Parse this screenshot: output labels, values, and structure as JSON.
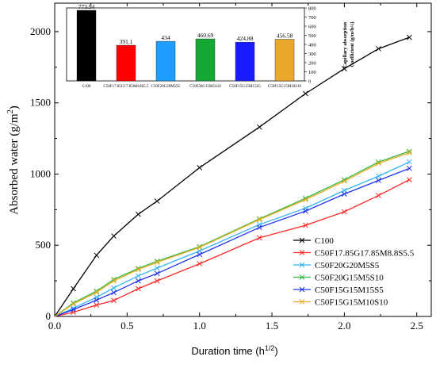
{
  "chart_data": [
    {
      "type": "line",
      "xlabel": "Duration time (h1/2)",
      "xlabel_parts": {
        "main": "Duration time (h",
        "sup": "1/2",
        "end": ")"
      },
      "ylabel": "Absorbed water (g/m2)",
      "ylabel_parts": {
        "main": "Absorbed water (g/m",
        "sup": "2",
        "end": ")"
      },
      "xlim": [
        0.0,
        2.6
      ],
      "ylim": [
        0,
        2200
      ],
      "xticks": [
        0.0,
        0.5,
        1.0,
        1.5,
        2.0,
        2.5
      ],
      "xtick_labels": [
        "0.0",
        "0.5",
        "1.0",
        "1.5",
        "2.0",
        "2.5"
      ],
      "yticks": [
        0,
        500,
        1000,
        1500,
        2000
      ],
      "ytick_labels": [
        "0",
        "500",
        "1000",
        "1500",
        "2000"
      ],
      "grid": false,
      "legend_position": "bottom-right",
      "x": [
        0,
        0.129,
        0.289,
        0.408,
        0.577,
        0.707,
        1.0,
        1.414,
        1.732,
        2.0,
        2.236,
        2.449
      ],
      "series": [
        {
          "name": "C100",
          "color": "#000000",
          "marker": "x",
          "values": [
            0,
            195,
            430,
            565,
            718,
            810,
            1045,
            1330,
            1565,
            1740,
            1880,
            1960
          ]
        },
        {
          "name": "C50F17.85G17.85M8.8S5.5",
          "color": "#ff2a2a",
          "marker": "x",
          "values": [
            0,
            30,
            80,
            112,
            195,
            250,
            370,
            552,
            640,
            735,
            850,
            960
          ]
        },
        {
          "name": "C50F20G20M5S5",
          "color": "#33b5f0",
          "marker": "x",
          "values": [
            0,
            58,
            135,
            200,
            285,
            340,
            460,
            645,
            760,
            885,
            985,
            1085
          ]
        },
        {
          "name": "C50F20G15M5S10",
          "color": "#33bb44",
          "marker": "x",
          "values": [
            0,
            95,
            178,
            260,
            337,
            388,
            490,
            685,
            830,
            960,
            1085,
            1160
          ]
        },
        {
          "name": "C50F15G15M15S5",
          "color": "#2233ee",
          "marker": "x",
          "values": [
            0,
            48,
            115,
            168,
            250,
            302,
            435,
            625,
            740,
            860,
            955,
            1040
          ]
        },
        {
          "name": "C50F15G15M10S10",
          "color": "#eaaa22",
          "marker": "x",
          "values": [
            0,
            88,
            170,
            250,
            330,
            380,
            485,
            680,
            820,
            950,
            1075,
            1150
          ]
        }
      ]
    },
    {
      "type": "bar",
      "categories": [
        "C100",
        "C50F17.85G17.85M8.8S5.5",
        "C50F20G20M5S5",
        "C50F20G15M5S10",
        "C50F15G15M15S5",
        "C50F15G15M10S10"
      ],
      "values": [
        773.94,
        391.1,
        434,
        460.69,
        424.88,
        456.58
      ],
      "value_labels": [
        "773.94",
        "391.1",
        "434",
        "460.69",
        "424.88",
        "456.58"
      ],
      "colors": [
        "#000000",
        "#ff0000",
        "#1e9fff",
        "#14a834",
        "#1a1aff",
        "#e8a82c"
      ],
      "ylabel_line1": "Capillary absorption",
      "ylabel_line2": "Coefficient (g/m²h½)",
      "ylim": [
        0,
        800
      ],
      "yticks": [
        0,
        100,
        200,
        300,
        400,
        500,
        600,
        700,
        800
      ],
      "ytick_labels": [
        "0",
        "100",
        "200",
        "300",
        "400",
        "500",
        "600",
        "700",
        "800"
      ],
      "grid": false
    }
  ]
}
